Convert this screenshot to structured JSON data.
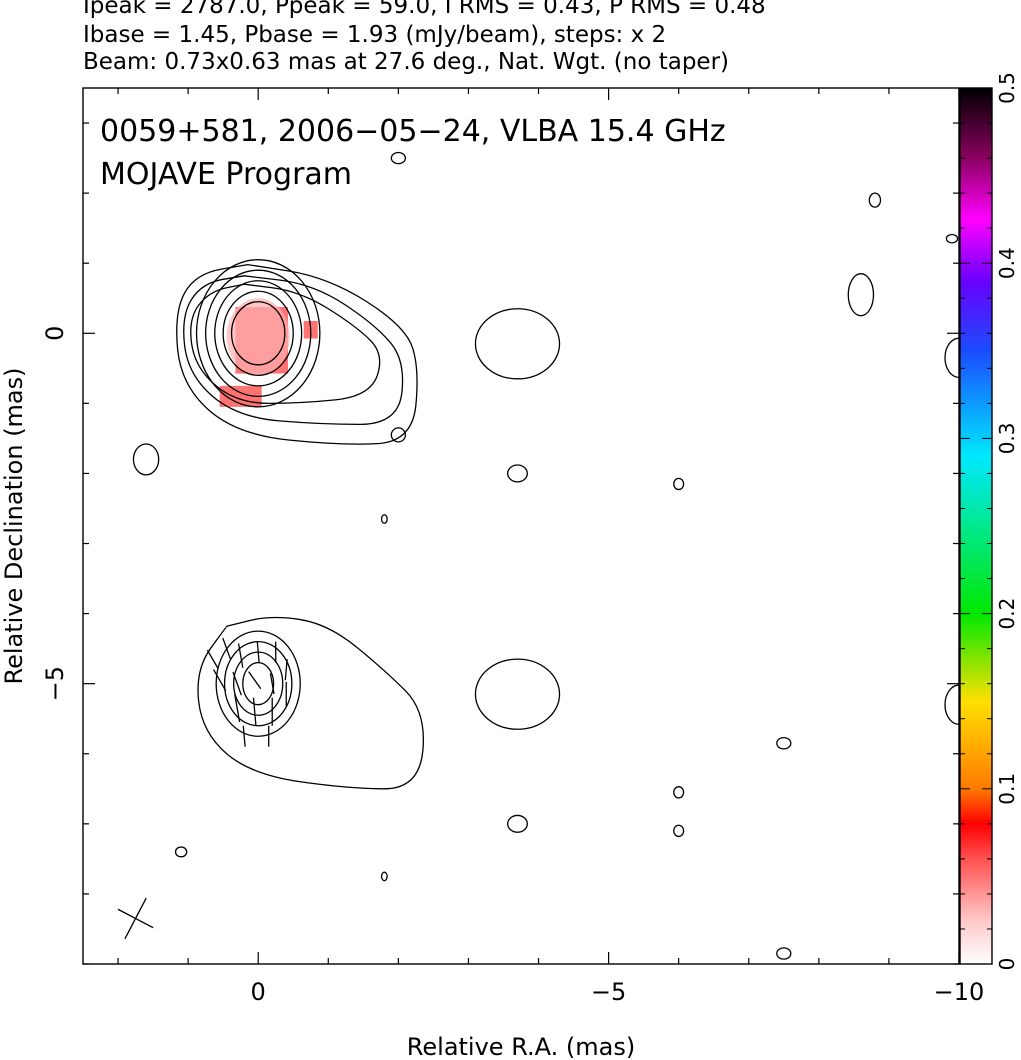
{
  "header": {
    "line1": "Ipeak = 2787.0, Ppeak = 59.0, I RMS = 0.43, P RMS = 0.48",
    "line2": "Ibase = 1.45, Pbase = 1.93 (mJy/beam), steps: x 2",
    "line3": "Beam: 0.73x0.63 mas at 27.6 deg., Nat. Wgt. (no taper)"
  },
  "chart_data": {
    "type": "contour",
    "title": "0059+581, 2006−05−24, VLBA 15.4 GHz",
    "subtitle": "MOJAVE Program",
    "xlabel": "Relative R.A. (mas)",
    "ylabel": "Relative Declination (mas)",
    "xlim": [
      2.5,
      -10.0
    ],
    "ylim": [
      -9.0,
      3.5
    ],
    "x_ticks": [
      0,
      -5,
      -10
    ],
    "x_tick_labels": [
      "0",
      "−5",
      "−10"
    ],
    "y_ticks": [
      0,
      -5
    ],
    "y_tick_labels": [
      "0",
      "−5"
    ],
    "grid": false,
    "colorbar": {
      "ticks": [
        0,
        0.1,
        0.2,
        0.3,
        0.4,
        0.5
      ],
      "tick_labels": [
        "0",
        "0.1",
        "0.2",
        "0.3",
        "0.4",
        "0.5"
      ],
      "colors": [
        "#ffffff",
        "#ff9a9a",
        "#ff0000",
        "#ff8c00",
        "#ffff00",
        "#00ff00",
        "#00ffff",
        "#0040ff",
        "#ff00ff",
        "#000000"
      ]
    },
    "colors": {
      "polarized_flux": "#ff5a5a",
      "contours": "#000000"
    },
    "panels": [
      {
        "name": "Stokes I with fractional polarization",
        "center": [
          0,
          0
        ],
        "core_contours": [
          {
            "rx": 0.38,
            "ry": 0.45
          },
          {
            "rx": 0.5,
            "ry": 0.6
          },
          {
            "rx": 0.62,
            "ry": 0.75
          },
          {
            "rx": 0.75,
            "ry": 0.9
          },
          {
            "rx": 0.88,
            "ry": 1.05
          }
        ],
        "jet_contours": [
          [
            [
              0.2,
              0.7
            ],
            [
              -0.6,
              0.6
            ],
            [
              -1.4,
              0.1
            ],
            [
              -1.8,
              -0.3
            ],
            [
              -1.6,
              -0.9
            ],
            [
              -0.6,
              -1.0
            ],
            [
              0.3,
              -1.0
            ],
            [
              0.9,
              -0.5
            ],
            [
              1.0,
              0.2
            ],
            [
              0.7,
              0.6
            ],
            [
              0.2,
              0.7
            ]
          ],
          [
            [
              0.2,
              0.82
            ],
            [
              -0.8,
              0.7
            ],
            [
              -1.7,
              0.1
            ],
            [
              -2.1,
              -0.4
            ],
            [
              -2.0,
              -1.3
            ],
            [
              -0.9,
              -1.3
            ],
            [
              0.3,
              -1.2
            ],
            [
              1.0,
              -0.6
            ],
            [
              1.1,
              0.25
            ],
            [
              0.8,
              0.72
            ],
            [
              0.2,
              0.82
            ]
          ],
          [
            [
              0.15,
              0.98
            ],
            [
              -1.0,
              0.8
            ],
            [
              -2.1,
              0.1
            ],
            [
              -2.3,
              -0.5
            ],
            [
              -2.2,
              -1.55
            ],
            [
              -1.2,
              -1.6
            ],
            [
              0.3,
              -1.45
            ],
            [
              1.1,
              -0.75
            ],
            [
              1.2,
              0.3
            ],
            [
              0.9,
              0.85
            ],
            [
              0.15,
              0.98
            ]
          ]
        ],
        "small_contours": [
          [
            -3.7,
            -0.15,
            0.6,
            0.5
          ],
          [
            -2.0,
            -1.45,
            0.1,
            0.1
          ],
          [
            1.6,
            -1.8,
            0.18,
            0.22
          ],
          [
            -3.7,
            -2.0,
            0.14,
            0.12
          ],
          [
            -6.0,
            -2.15,
            0.07,
            0.08
          ],
          [
            -1.8,
            -2.65,
            0.04,
            0.06
          ],
          [
            -2.0,
            2.5,
            0.1,
            0.08
          ],
          [
            -8.8,
            1.9,
            0.08,
            0.1
          ],
          [
            -9.9,
            1.35,
            0.08,
            0.06
          ],
          [
            -8.6,
            0.55,
            0.18,
            0.3
          ],
          [
            -10.0,
            -0.35,
            0.2,
            0.28
          ]
        ],
        "polarization_pixels": [
          [
            -0.05,
            -0.1,
            0.75,
            0.95
          ],
          [
            -0.75,
            0.05,
            0.2,
            0.25
          ],
          [
            0.25,
            -0.9,
            0.6,
            0.3
          ]
        ]
      },
      {
        "name": "Stokes I with EVPA vectors",
        "center": [
          0,
          -5
        ],
        "core_contours": [
          {
            "rx": 0.22,
            "ry": 0.3
          },
          {
            "rx": 0.35,
            "ry": 0.45
          },
          {
            "rx": 0.48,
            "ry": 0.6
          },
          {
            "rx": 0.6,
            "ry": 0.75
          }
        ],
        "jet_contours": [
          [
            [
              0.45,
              0.82
            ],
            [
              -0.2,
              0.98
            ],
            [
              -1.0,
              0.85
            ],
            [
              -1.8,
              0.2
            ],
            [
              -2.4,
              -0.4
            ],
            [
              -2.3,
              -1.5
            ],
            [
              -1.3,
              -1.5
            ],
            [
              0.1,
              -1.3
            ],
            [
              0.8,
              -0.7
            ],
            [
              0.9,
              0.2
            ],
            [
              0.45,
              0.82
            ]
          ]
        ],
        "small_contours": [
          [
            -3.7,
            -0.15,
            0.6,
            0.5
          ],
          [
            -3.7,
            -2.0,
            0.14,
            0.12
          ],
          [
            1.1,
            -2.4,
            0.08,
            0.07
          ],
          [
            -1.8,
            -2.75,
            0.04,
            0.06
          ],
          [
            -6.0,
            -1.55,
            0.07,
            0.08
          ],
          [
            -6.0,
            -2.1,
            0.07,
            0.08
          ],
          [
            -7.5,
            -0.85,
            0.1,
            0.08
          ],
          [
            -7.5,
            -3.85,
            0.1,
            0.08
          ],
          [
            -10.0,
            -0.3,
            0.2,
            0.28
          ]
        ],
        "evpa_vectors": [
          [
            0.65,
            0.35,
            0.3,
            120
          ],
          [
            0.45,
            0.5,
            0.32,
            110
          ],
          [
            0.25,
            0.4,
            0.35,
            100
          ],
          [
            0.0,
            0.45,
            0.3,
            95
          ],
          [
            -0.25,
            0.45,
            0.3,
            90
          ],
          [
            -0.4,
            0.2,
            0.3,
            85
          ],
          [
            0.55,
            0.05,
            0.35,
            120
          ],
          [
            0.3,
            0.0,
            0.35,
            110
          ],
          [
            0.05,
            0.05,
            0.3,
            125
          ],
          [
            -0.2,
            0.0,
            0.3,
            100
          ],
          [
            -0.4,
            -0.15,
            0.35,
            90
          ],
          [
            0.3,
            -0.35,
            0.4,
            100
          ],
          [
            0.05,
            -0.4,
            0.4,
            95
          ],
          [
            -0.2,
            -0.4,
            0.4,
            90
          ],
          [
            0.2,
            -0.75,
            0.3,
            95
          ],
          [
            -0.15,
            -0.75,
            0.3,
            90
          ]
        ]
      }
    ],
    "beam": {
      "x": 1.75,
      "y": -8.35,
      "major": 0.73,
      "minor": 0.63,
      "pa_deg": 27.6
    }
  }
}
